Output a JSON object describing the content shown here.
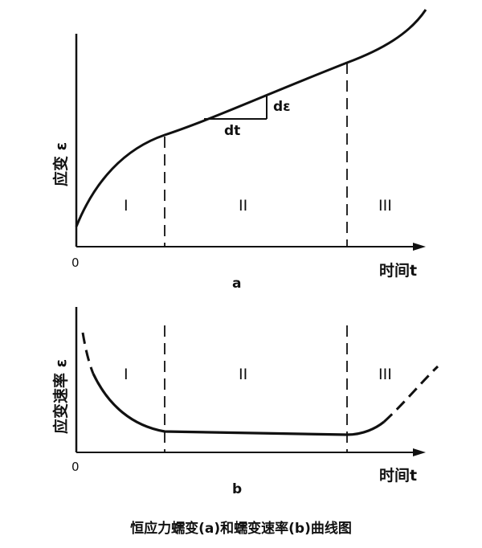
{
  "caption": "恒应力蠕变(a)和蠕变速率(b)曲线图",
  "plot_a": {
    "panel_label": "a",
    "y_axis_label": "应变 ε",
    "x_axis_label": "时间t",
    "origin_label": "0",
    "stage_labels": [
      "I",
      "II",
      "III"
    ],
    "slope_labels": {
      "de": "dε",
      "dt": "dt"
    }
  },
  "plot_b": {
    "panel_label": "b",
    "y_axis_label": "应变速率 ε",
    "x_axis_label": "时间t",
    "origin_label": "0",
    "stage_labels": [
      "I",
      "II",
      "III"
    ]
  }
}
